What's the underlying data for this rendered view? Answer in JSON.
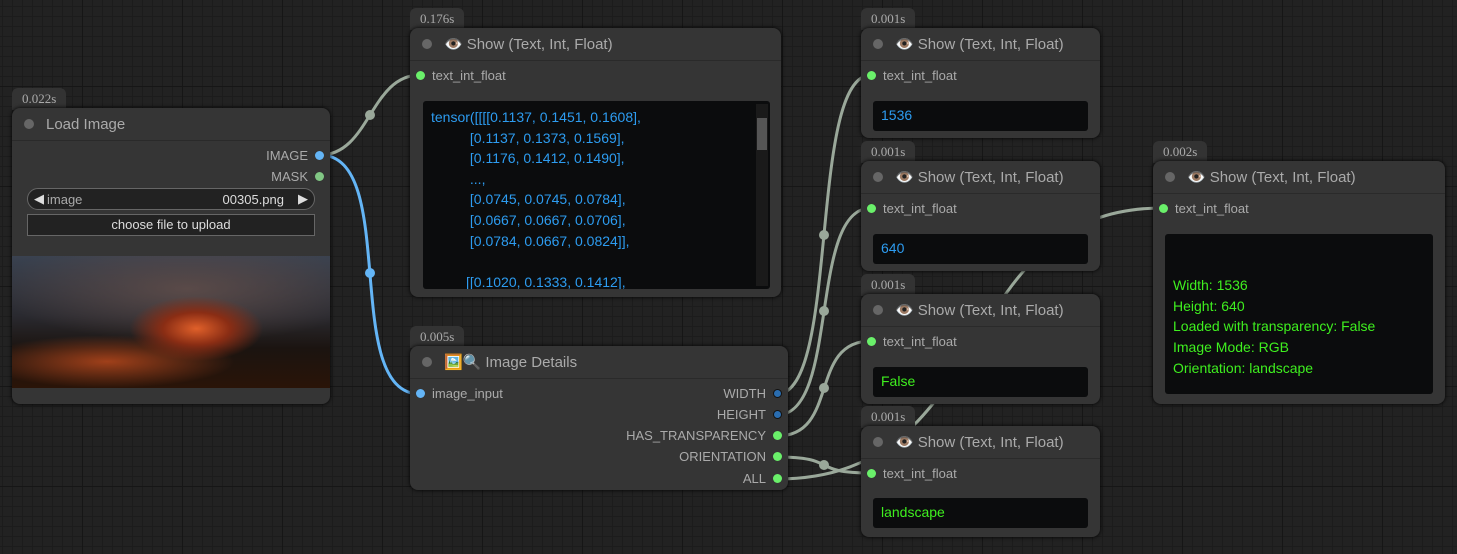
{
  "nodes": {
    "load_image": {
      "time": "0.022s",
      "title": "Load Image",
      "outputs": [
        "IMAGE",
        "MASK"
      ],
      "widget_label": "image",
      "widget_value": "00305.png",
      "upload_label": "choose file to upload"
    },
    "show_tensor": {
      "time": "0.176s",
      "title": "Show (Text, Int, Float)",
      "input": "text_int_float",
      "value": "tensor([[[[0.1137, 0.1451, 0.1608],\n          [0.1137, 0.1373, 0.1569],\n          [0.1176, 0.1412, 0.1490],\n          ...,\n          [0.0745, 0.0745, 0.0784],\n          [0.0667, 0.0667, 0.0706],\n          [0.0784, 0.0667, 0.0824]],\n\n         [[0.1020, 0.1333, 0.1412],"
    },
    "image_details": {
      "time": "0.005s",
      "title": "Image Details",
      "input": "image_input",
      "outputs": [
        "WIDTH",
        "HEIGHT",
        "HAS_TRANSPARENCY",
        "ORIENTATION",
        "ALL"
      ]
    },
    "show_width": {
      "time": "0.001s",
      "title": "Show (Text, Int, Float)",
      "input": "text_int_float",
      "value": "1536"
    },
    "show_height": {
      "time": "0.001s",
      "title": "Show (Text, Int, Float)",
      "input": "text_int_float",
      "value": "640"
    },
    "show_transparency": {
      "time": "0.001s",
      "title": "Show (Text, Int, Float)",
      "input": "text_int_float",
      "value": "False"
    },
    "show_orientation": {
      "time": "0.001s",
      "title": "Show (Text, Int, Float)",
      "input": "text_int_float",
      "value": "landscape"
    },
    "show_all": {
      "time": "0.002s",
      "title": "Show (Text, Int, Float)",
      "input": "text_int_float",
      "value": "\n\nWidth: 1536\nHeight: 640\nLoaded with transparency: False\nImage Mode: RGB\nOrientation: landscape"
    }
  },
  "colors": {
    "image_link": "#64b5f6",
    "int_link": "#2a6db0",
    "generic_link": "#9aa89a",
    "string_slot": "#6af06a",
    "int_text": "#2d9cf0",
    "string_text": "#3ff01f"
  }
}
